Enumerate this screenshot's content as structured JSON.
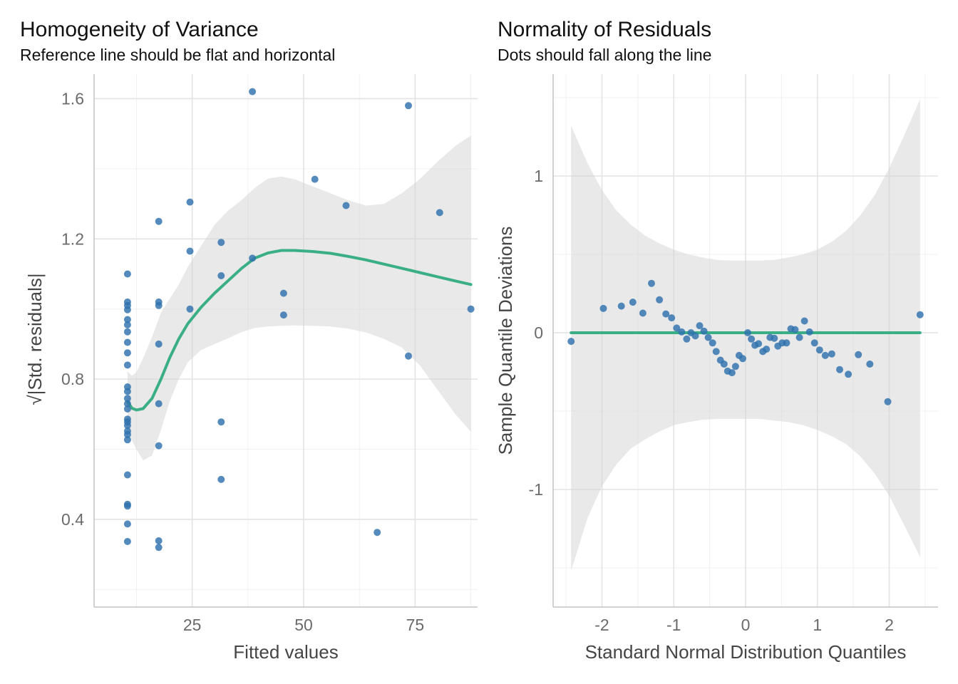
{
  "chart_data": [
    {
      "type": "scatter",
      "title": "Homogeneity of Variance",
      "subtitle": "Reference line should be flat and horizontal",
      "xlabel": "Fitted values",
      "ylabel": "√|Std. residuals|",
      "xlim": [
        3,
        89
      ],
      "ylim": [
        0.15,
        1.67
      ],
      "xticks": [
        25,
        50,
        75
      ],
      "yticks": [
        0.4,
        0.8,
        1.2,
        1.6
      ],
      "xtick_labels": [
        "25",
        "50",
        "75"
      ],
      "ytick_labels": [
        "0.4",
        "0.8",
        "1.2",
        "1.6"
      ],
      "grid": true,
      "series": [
        {
          "points": [
            [
              10.5,
              1.1
            ],
            [
              10.5,
              1.02
            ],
            [
              10.5,
              1.01
            ],
            [
              10.5,
              0.998
            ],
            [
              10.5,
              0.97
            ],
            [
              10.5,
              0.955
            ],
            [
              10.5,
              0.935
            ],
            [
              10.5,
              0.905
            ],
            [
              10.5,
              0.875
            ],
            [
              10.5,
              0.84
            ],
            [
              10.5,
              0.778
            ],
            [
              10.5,
              0.765
            ],
            [
              10.5,
              0.745
            ],
            [
              10.5,
              0.73
            ],
            [
              10.5,
              0.715
            ],
            [
              10.5,
              0.686
            ],
            [
              10.5,
              0.678
            ],
            [
              10.5,
              0.668
            ],
            [
              10.5,
              0.652
            ],
            [
              10.5,
              0.642
            ],
            [
              10.5,
              0.627
            ],
            [
              10.5,
              0.527
            ],
            [
              10.5,
              0.443
            ],
            [
              10.5,
              0.438
            ],
            [
              10.5,
              0.387
            ],
            [
              10.5,
              0.337
            ],
            [
              17.5,
              1.25
            ],
            [
              17.5,
              1.02
            ],
            [
              17.5,
              1.01
            ],
            [
              17.5,
              0.9
            ],
            [
              17.5,
              0.73
            ],
            [
              17.5,
              0.61
            ],
            [
              17.5,
              0.339
            ],
            [
              17.5,
              0.32
            ],
            [
              24.5,
              1.305
            ],
            [
              24.5,
              1.165
            ],
            [
              24.5,
              1.0
            ],
            [
              31.5,
              1.19
            ],
            [
              31.5,
              1.095
            ],
            [
              31.5,
              0.678
            ],
            [
              31.5,
              0.514
            ],
            [
              38.5,
              1.62
            ],
            [
              38.5,
              1.145
            ],
            [
              45.5,
              1.045
            ],
            [
              45.5,
              0.983
            ],
            [
              52.5,
              1.37
            ],
            [
              59.5,
              1.295
            ],
            [
              66.5,
              0.363
            ],
            [
              73.5,
              1.58
            ],
            [
              73.5,
              0.866
            ],
            [
              80.5,
              1.275
            ],
            [
              87.5,
              1.0
            ]
          ]
        }
      ],
      "smooth": {
        "x": [
          10.5,
          11.5,
          12.5,
          14,
          16,
          18,
          20,
          22,
          24,
          27,
          30,
          33,
          36,
          39,
          42,
          45,
          48,
          52,
          56,
          60,
          64,
          68,
          72,
          76,
          80,
          84,
          87.5
        ],
        "y": [
          0.736,
          0.717,
          0.712,
          0.716,
          0.745,
          0.8,
          0.862,
          0.915,
          0.958,
          1.005,
          1.045,
          1.08,
          1.115,
          1.145,
          1.16,
          1.167,
          1.167,
          1.164,
          1.159,
          1.15,
          1.14,
          1.128,
          1.116,
          1.104,
          1.092,
          1.08,
          1.07
        ],
        "lo": [
          0.655,
          0.625,
          0.6,
          0.568,
          0.582,
          0.655,
          0.738,
          0.8,
          0.848,
          0.883,
          0.9,
          0.916,
          0.934,
          0.946,
          0.95,
          0.952,
          0.953,
          0.952,
          0.95,
          0.944,
          0.933,
          0.915,
          0.89,
          0.84,
          0.77,
          0.7,
          0.65
        ],
        "hi": [
          0.822,
          0.81,
          0.82,
          0.86,
          0.92,
          0.99,
          1.03,
          1.07,
          1.12,
          1.18,
          1.24,
          1.28,
          1.31,
          1.345,
          1.372,
          1.378,
          1.37,
          1.35,
          1.33,
          1.31,
          1.295,
          1.3,
          1.33,
          1.37,
          1.42,
          1.465,
          1.495
        ]
      },
      "colors": {
        "points": "#2e72ad",
        "line": "#3aaf85",
        "ribbon": "#d3d3d3"
      }
    },
    {
      "type": "scatter",
      "title": "Normality of Residuals",
      "subtitle": "Dots should fall along the line",
      "xlabel": "Standard Normal Distribution Quantiles",
      "ylabel": "Sample Quantile Deviations",
      "xlim": [
        -2.68,
        2.68
      ],
      "ylim": [
        -1.75,
        1.65
      ],
      "xticks": [
        -2,
        -1,
        0,
        1,
        2
      ],
      "yticks": [
        -1,
        0,
        1
      ],
      "xtick_labels": [
        "-2",
        "-1",
        "0",
        "1",
        "2"
      ],
      "ytick_labels": [
        "-1",
        "0",
        "1"
      ],
      "grid": true,
      "series": [
        {
          "points": [
            [
              -2.43,
              -0.055
            ],
            [
              -1.98,
              0.155
            ],
            [
              -1.73,
              0.17
            ],
            [
              -1.57,
              0.195
            ],
            [
              -1.43,
              0.125
            ],
            [
              -1.31,
              0.315
            ],
            [
              -1.2,
              0.21
            ],
            [
              -1.11,
              0.12
            ],
            [
              -1.03,
              0.095
            ],
            [
              -0.96,
              0.03
            ],
            [
              -0.89,
              0.005
            ],
            [
              -0.82,
              -0.04
            ],
            [
              -0.76,
              0.0
            ],
            [
              -0.7,
              -0.02
            ],
            [
              -0.64,
              0.045
            ],
            [
              -0.58,
              0.01
            ],
            [
              -0.52,
              -0.03
            ],
            [
              -0.46,
              -0.065
            ],
            [
              -0.41,
              -0.12
            ],
            [
              -0.35,
              -0.175
            ],
            [
              -0.3,
              -0.2
            ],
            [
              -0.25,
              -0.245
            ],
            [
              -0.19,
              -0.255
            ],
            [
              -0.14,
              -0.215
            ],
            [
              -0.09,
              -0.145
            ],
            [
              -0.04,
              -0.165
            ],
            [
              0.03,
              0.0
            ],
            [
              0.08,
              -0.04
            ],
            [
              0.13,
              -0.08
            ],
            [
              0.18,
              -0.07
            ],
            [
              0.24,
              -0.12
            ],
            [
              0.29,
              -0.105
            ],
            [
              0.34,
              -0.03
            ],
            [
              0.4,
              -0.035
            ],
            [
              0.45,
              -0.085
            ],
            [
              0.51,
              -0.065
            ],
            [
              0.57,
              -0.065
            ],
            [
              0.63,
              0.025
            ],
            [
              0.69,
              0.02
            ],
            [
              0.75,
              -0.03
            ],
            [
              0.82,
              0.075
            ],
            [
              0.89,
              0.005
            ],
            [
              0.96,
              -0.065
            ],
            [
              1.03,
              -0.11
            ],
            [
              1.11,
              -0.145
            ],
            [
              1.2,
              -0.135
            ],
            [
              1.31,
              -0.235
            ],
            [
              1.43,
              -0.265
            ],
            [
              1.57,
              -0.14
            ],
            [
              1.73,
              -0.2
            ],
            [
              1.98,
              -0.44
            ],
            [
              2.43,
              0.115
            ]
          ]
        }
      ],
      "reference": {
        "x": [
          -2.43,
          2.43
        ],
        "y": [
          0,
          0
        ]
      },
      "band": {
        "x": [
          -2.43,
          -2.2,
          -2.0,
          -1.8,
          -1.6,
          -1.4,
          -1.2,
          -1.0,
          -0.8,
          -0.6,
          -0.4,
          -0.2,
          0.0,
          0.2,
          0.4,
          0.6,
          0.8,
          1.0,
          1.2,
          1.4,
          1.6,
          1.8,
          2.0,
          2.2,
          2.43
        ],
        "lo": [
          -1.52,
          -1.18,
          -0.98,
          -0.84,
          -0.74,
          -0.68,
          -0.63,
          -0.59,
          -0.57,
          -0.555,
          -0.55,
          -0.55,
          -0.55,
          -0.55,
          -0.56,
          -0.57,
          -0.59,
          -0.62,
          -0.66,
          -0.71,
          -0.79,
          -0.9,
          -1.04,
          -1.22,
          -1.43
        ],
        "hi": [
          1.32,
          1.08,
          0.91,
          0.78,
          0.69,
          0.62,
          0.57,
          0.53,
          0.5,
          0.48,
          0.465,
          0.46,
          0.46,
          0.46,
          0.465,
          0.48,
          0.5,
          0.53,
          0.58,
          0.65,
          0.75,
          0.88,
          1.05,
          1.25,
          1.49
        ]
      },
      "colors": {
        "points": "#2e72ad",
        "line": "#3aaf85",
        "ribbon": "#d3d3d3"
      }
    }
  ]
}
